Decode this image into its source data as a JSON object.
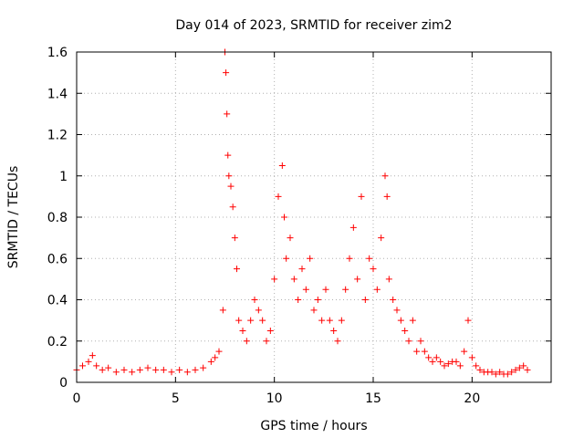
{
  "chart_data": {
    "type": "scatter",
    "title": "Day 014 of 2023, SRMTID for receiver zim2",
    "xlabel": "GPS time / hours",
    "ylabel": "SRMTID / TECUs",
    "xlim": [
      0,
      24
    ],
    "ylim": [
      0,
      1.6
    ],
    "x_ticks": [
      0,
      5,
      10,
      15,
      20
    ],
    "x_tick_labels": [
      "0",
      "5",
      "10",
      "15",
      "20"
    ],
    "y_ticks": [
      0,
      0.2,
      0.4,
      0.6,
      0.8,
      1.0,
      1.2,
      1.4,
      1.6
    ],
    "y_tick_labels": [
      "0",
      "0.2",
      "0.4",
      "0.6",
      "0.8",
      "1",
      "1.2",
      "1.4",
      "1.6"
    ],
    "grid": true,
    "marker": "+",
    "color": "#ff0000",
    "series": [
      {
        "name": "SRMTID",
        "x": [
          0.0,
          0.3,
          0.6,
          0.8,
          1.0,
          1.3,
          1.6,
          2.0,
          2.4,
          2.8,
          3.2,
          3.6,
          4.0,
          4.4,
          4.8,
          5.2,
          5.6,
          6.0,
          6.4,
          6.8,
          7.0,
          7.2,
          7.4,
          7.5,
          7.55,
          7.6,
          7.65,
          7.7,
          7.8,
          7.9,
          8.0,
          8.1,
          8.2,
          8.4,
          8.6,
          8.8,
          9.0,
          9.2,
          9.4,
          9.6,
          9.8,
          10.0,
          10.2,
          10.4,
          10.5,
          10.6,
          10.8,
          11.0,
          11.2,
          11.4,
          11.6,
          11.8,
          12.0,
          12.2,
          12.4,
          12.6,
          12.8,
          13.0,
          13.2,
          13.4,
          13.6,
          13.8,
          14.0,
          14.2,
          14.4,
          14.6,
          14.8,
          15.0,
          15.2,
          15.4,
          15.6,
          15.7,
          15.8,
          16.0,
          16.2,
          16.4,
          16.6,
          16.8,
          17.0,
          17.2,
          17.4,
          17.6,
          17.8,
          18.0,
          18.2,
          18.4,
          18.6,
          18.8,
          19.0,
          19.2,
          19.4,
          19.6,
          19.8,
          20.0,
          20.2,
          20.4,
          20.6,
          20.8,
          21.0,
          21.2,
          21.4,
          21.6,
          21.8,
          22.0,
          22.2,
          22.4,
          22.6,
          22.8
        ],
        "y": [
          0.06,
          0.08,
          0.1,
          0.13,
          0.08,
          0.06,
          0.07,
          0.05,
          0.06,
          0.05,
          0.06,
          0.07,
          0.06,
          0.06,
          0.05,
          0.06,
          0.05,
          0.06,
          0.07,
          0.1,
          0.12,
          0.15,
          0.35,
          1.6,
          1.5,
          1.3,
          1.1,
          1.0,
          0.95,
          0.85,
          0.7,
          0.55,
          0.3,
          0.25,
          0.2,
          0.3,
          0.4,
          0.35,
          0.3,
          0.2,
          0.25,
          0.5,
          0.9,
          1.05,
          0.8,
          0.6,
          0.7,
          0.5,
          0.4,
          0.55,
          0.45,
          0.6,
          0.35,
          0.4,
          0.3,
          0.45,
          0.3,
          0.25,
          0.2,
          0.3,
          0.45,
          0.6,
          0.75,
          0.5,
          0.9,
          0.4,
          0.6,
          0.55,
          0.45,
          0.7,
          1.0,
          0.9,
          0.5,
          0.4,
          0.35,
          0.3,
          0.25,
          0.2,
          0.3,
          0.15,
          0.2,
          0.15,
          0.12,
          0.1,
          0.12,
          0.1,
          0.08,
          0.09,
          0.1,
          0.1,
          0.08,
          0.15,
          0.3,
          0.12,
          0.08,
          0.06,
          0.05,
          0.05,
          0.05,
          0.04,
          0.05,
          0.04,
          0.04,
          0.05,
          0.06,
          0.07,
          0.08,
          0.06
        ]
      }
    ]
  }
}
